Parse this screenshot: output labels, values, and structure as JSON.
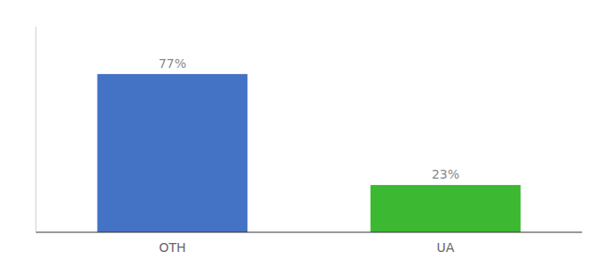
{
  "chart_data": {
    "type": "bar",
    "categories": [
      "OTH",
      "UA"
    ],
    "values": [
      77,
      23
    ],
    "value_labels": [
      "77%",
      "23%"
    ],
    "colors": [
      "#4472c4",
      "#3cb832"
    ],
    "ylim": [
      0,
      100
    ],
    "data_labels": true,
    "tick_labels": "x"
  }
}
